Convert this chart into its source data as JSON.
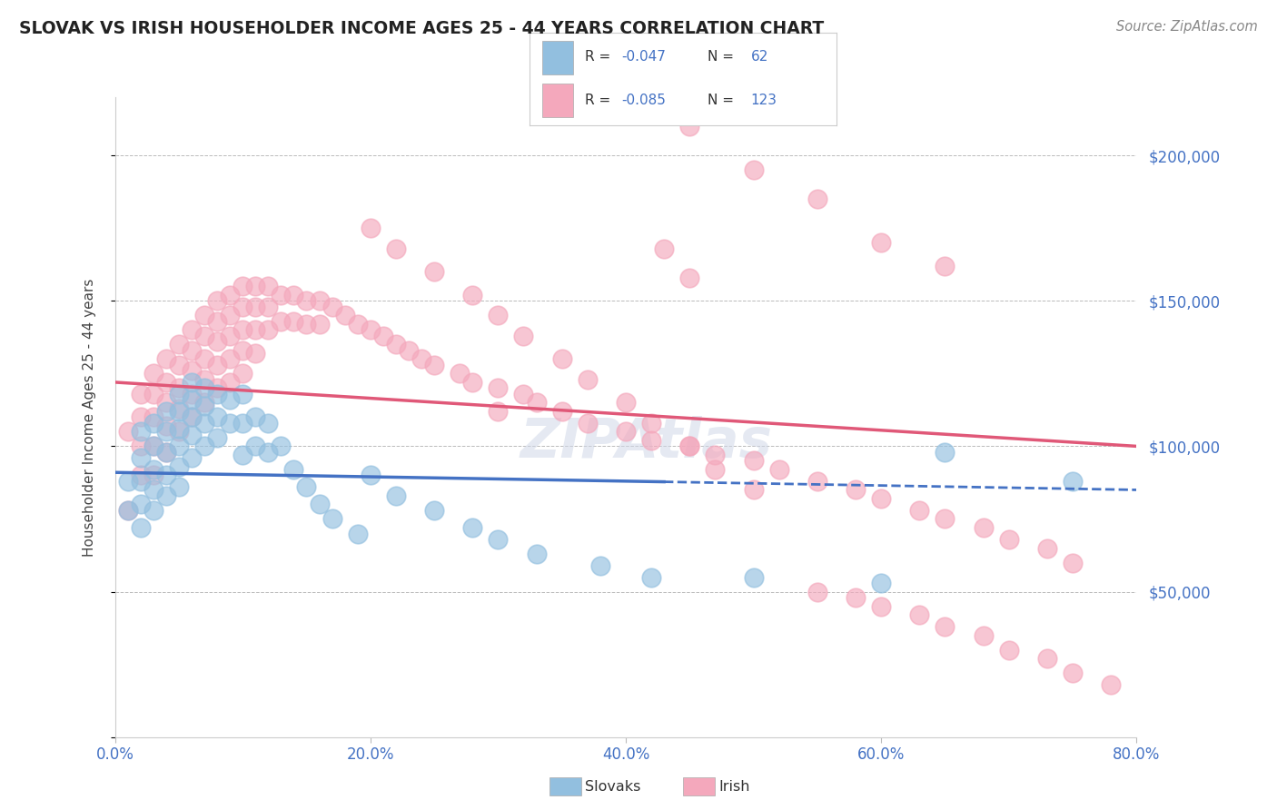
{
  "title": "SLOVAK VS IRISH HOUSEHOLDER INCOME AGES 25 - 44 YEARS CORRELATION CHART",
  "source": "Source: ZipAtlas.com",
  "ylabel": "Householder Income Ages 25 - 44 years",
  "watermark": "ZIPAtlas",
  "slovak_R": -0.047,
  "slovak_N": 62,
  "irish_R": -0.085,
  "irish_N": 123,
  "xlim": [
    0.0,
    0.8
  ],
  "ylim": [
    0,
    220000
  ],
  "yticks": [
    0,
    50000,
    100000,
    150000,
    200000
  ],
  "ytick_labels": [
    "",
    "$50,000",
    "$100,000",
    "$150,000",
    "$200,000"
  ],
  "xticks": [
    0.0,
    0.2,
    0.4,
    0.6,
    0.8
  ],
  "xtick_labels": [
    "0.0%",
    "20.0%",
    "40.0%",
    "60.0%",
    "80.0%"
  ],
  "slovak_color": "#92bfdf",
  "irish_color": "#f4a8bc",
  "slovak_line_color": "#4472c4",
  "irish_line_color": "#e05878",
  "background_color": "#ffffff",
  "grid_color": "#bbbbbb",
  "title_color": "#222222",
  "axis_label_color": "#444444",
  "tick_color": "#4472c4",
  "slovak_line_y0": 91000,
  "slovak_line_y1": 85000,
  "irish_line_y0": 122000,
  "irish_line_y1": 100000,
  "slovak_x": [
    0.01,
    0.01,
    0.02,
    0.02,
    0.02,
    0.02,
    0.02,
    0.03,
    0.03,
    0.03,
    0.03,
    0.03,
    0.04,
    0.04,
    0.04,
    0.04,
    0.04,
    0.05,
    0.05,
    0.05,
    0.05,
    0.05,
    0.05,
    0.06,
    0.06,
    0.06,
    0.06,
    0.06,
    0.07,
    0.07,
    0.07,
    0.07,
    0.08,
    0.08,
    0.08,
    0.09,
    0.09,
    0.1,
    0.1,
    0.1,
    0.11,
    0.11,
    0.12,
    0.12,
    0.13,
    0.14,
    0.15,
    0.16,
    0.17,
    0.19,
    0.2,
    0.22,
    0.25,
    0.28,
    0.3,
    0.33,
    0.38,
    0.42,
    0.5,
    0.6,
    0.65,
    0.75
  ],
  "slovak_y": [
    88000,
    78000,
    105000,
    96000,
    88000,
    80000,
    72000,
    108000,
    100000,
    92000,
    85000,
    78000,
    112000,
    105000,
    98000,
    90000,
    83000,
    118000,
    112000,
    106000,
    100000,
    93000,
    86000,
    122000,
    116000,
    110000,
    104000,
    96000,
    120000,
    114000,
    108000,
    100000,
    118000,
    110000,
    103000,
    116000,
    108000,
    118000,
    108000,
    97000,
    110000,
    100000,
    108000,
    98000,
    100000,
    92000,
    86000,
    80000,
    75000,
    70000,
    90000,
    83000,
    78000,
    72000,
    68000,
    63000,
    59000,
    55000,
    55000,
    53000,
    98000,
    88000
  ],
  "irish_x": [
    0.01,
    0.01,
    0.02,
    0.02,
    0.02,
    0.02,
    0.03,
    0.03,
    0.03,
    0.03,
    0.03,
    0.04,
    0.04,
    0.04,
    0.04,
    0.04,
    0.05,
    0.05,
    0.05,
    0.05,
    0.05,
    0.06,
    0.06,
    0.06,
    0.06,
    0.06,
    0.07,
    0.07,
    0.07,
    0.07,
    0.07,
    0.08,
    0.08,
    0.08,
    0.08,
    0.08,
    0.09,
    0.09,
    0.09,
    0.09,
    0.09,
    0.1,
    0.1,
    0.1,
    0.1,
    0.1,
    0.11,
    0.11,
    0.11,
    0.11,
    0.12,
    0.12,
    0.12,
    0.13,
    0.13,
    0.14,
    0.14,
    0.15,
    0.15,
    0.16,
    0.16,
    0.17,
    0.18,
    0.19,
    0.2,
    0.21,
    0.22,
    0.23,
    0.24,
    0.25,
    0.27,
    0.28,
    0.3,
    0.3,
    0.32,
    0.33,
    0.35,
    0.37,
    0.4,
    0.42,
    0.45,
    0.47,
    0.5,
    0.52,
    0.55,
    0.58,
    0.6,
    0.63,
    0.65,
    0.68,
    0.7,
    0.73,
    0.75,
    0.43,
    0.45,
    0.2,
    0.22,
    0.25,
    0.28,
    0.3,
    0.32,
    0.35,
    0.37,
    0.4,
    0.42,
    0.45,
    0.47,
    0.5,
    0.55,
    0.58,
    0.6,
    0.63,
    0.65,
    0.68,
    0.7,
    0.73,
    0.75,
    0.78,
    0.45,
    0.5,
    0.55,
    0.6,
    0.65
  ],
  "irish_y": [
    105000,
    78000,
    118000,
    110000,
    100000,
    90000,
    125000,
    118000,
    110000,
    100000,
    90000,
    130000,
    122000,
    115000,
    107000,
    98000,
    135000,
    128000,
    120000,
    113000,
    105000,
    140000,
    133000,
    126000,
    118000,
    110000,
    145000,
    138000,
    130000,
    123000,
    115000,
    150000,
    143000,
    136000,
    128000,
    120000,
    152000,
    145000,
    138000,
    130000,
    122000,
    155000,
    148000,
    140000,
    133000,
    125000,
    155000,
    148000,
    140000,
    132000,
    155000,
    148000,
    140000,
    152000,
    143000,
    152000,
    143000,
    150000,
    142000,
    150000,
    142000,
    148000,
    145000,
    142000,
    140000,
    138000,
    135000,
    133000,
    130000,
    128000,
    125000,
    122000,
    120000,
    112000,
    118000,
    115000,
    112000,
    108000,
    105000,
    102000,
    100000,
    97000,
    95000,
    92000,
    88000,
    85000,
    82000,
    78000,
    75000,
    72000,
    68000,
    65000,
    60000,
    168000,
    158000,
    175000,
    168000,
    160000,
    152000,
    145000,
    138000,
    130000,
    123000,
    115000,
    108000,
    100000,
    92000,
    85000,
    50000,
    48000,
    45000,
    42000,
    38000,
    35000,
    30000,
    27000,
    22000,
    18000,
    210000,
    195000,
    185000,
    170000,
    162000
  ]
}
